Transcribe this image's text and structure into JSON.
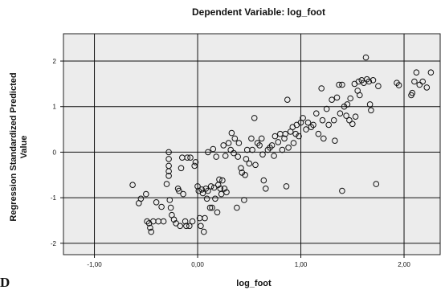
{
  "chart_data": {
    "type": "scatter",
    "title": "Dependent Variable: log_foot",
    "xlabel": "log_foot",
    "ylabel": [
      "Regression Standardized Predicted",
      "Value"
    ],
    "xlim": [
      -1.3,
      2.35
    ],
    "ylim": [
      -2.25,
      2.6
    ],
    "xticks": [
      -1,
      0,
      1,
      2
    ],
    "xtick_labels": [
      "-1,00",
      "0,00",
      "1,00",
      "2,00"
    ],
    "yticks": [
      -2,
      -1,
      0,
      1,
      2
    ],
    "ytick_labels": [
      "-2",
      "-1",
      "0",
      "1",
      "2"
    ],
    "grid": true,
    "plot_background": "#ececec",
    "marker": "open-circle",
    "points": [
      [
        -0.63,
        -0.72
      ],
      [
        -0.57,
        -1.12
      ],
      [
        -0.55,
        -1.02
      ],
      [
        -0.5,
        -0.92
      ],
      [
        -0.49,
        -1.52
      ],
      [
        -0.47,
        -1.56
      ],
      [
        -0.46,
        -1.66
      ],
      [
        -0.45,
        -1.75
      ],
      [
        -0.43,
        -1.52
      ],
      [
        -0.4,
        -1.1
      ],
      [
        -0.38,
        -1.52
      ],
      [
        -0.35,
        -1.2
      ],
      [
        -0.33,
        -1.52
      ],
      [
        -0.3,
        -0.7
      ],
      [
        -0.28,
        -0.52
      ],
      [
        -0.28,
        -0.42
      ],
      [
        -0.28,
        -0.3
      ],
      [
        -0.28,
        -0.15
      ],
      [
        -0.28,
        0.0
      ],
      [
        -0.27,
        -1.05
      ],
      [
        -0.26,
        -1.22
      ],
      [
        -0.25,
        -1.38
      ],
      [
        -0.23,
        -1.48
      ],
      [
        -0.21,
        -1.56
      ],
      [
        -0.19,
        -0.8
      ],
      [
        -0.18,
        -0.85
      ],
      [
        -0.17,
        -1.62
      ],
      [
        -0.16,
        -0.35
      ],
      [
        -0.15,
        -0.12
      ],
      [
        -0.14,
        -0.92
      ],
      [
        -0.12,
        -1.52
      ],
      [
        -0.11,
        -1.62
      ],
      [
        -0.1,
        -0.12
      ],
      [
        -0.08,
        -1.62
      ],
      [
        -0.07,
        -0.12
      ],
      [
        -0.05,
        -1.52
      ],
      [
        -0.03,
        -0.3
      ],
      [
        -0.02,
        -0.22
      ],
      [
        0.0,
        -0.75
      ],
      [
        0.01,
        -0.85
      ],
      [
        0.02,
        -1.45
      ],
      [
        0.03,
        -1.62
      ],
      [
        0.04,
        -0.82
      ],
      [
        0.05,
        -0.9
      ],
      [
        0.06,
        -1.75
      ],
      [
        0.07,
        -1.45
      ],
      [
        0.08,
        -0.8
      ],
      [
        0.09,
        -1.02
      ],
      [
        0.1,
        -0.85
      ],
      [
        0.1,
        0.0
      ],
      [
        0.12,
        -1.22
      ],
      [
        0.13,
        -0.75
      ],
      [
        0.14,
        -1.22
      ],
      [
        0.15,
        0.07
      ],
      [
        0.16,
        -0.78
      ],
      [
        0.17,
        -1.02
      ],
      [
        0.18,
        -0.1
      ],
      [
        0.19,
        -1.32
      ],
      [
        0.2,
        -0.72
      ],
      [
        0.21,
        -0.6
      ],
      [
        0.22,
        -0.8
      ],
      [
        0.23,
        -0.92
      ],
      [
        0.24,
        -0.62
      ],
      [
        0.25,
        0.15
      ],
      [
        0.26,
        -0.8
      ],
      [
        0.27,
        -0.08
      ],
      [
        0.28,
        -0.88
      ],
      [
        0.3,
        0.2
      ],
      [
        0.32,
        0.05
      ],
      [
        0.33,
        0.42
      ],
      [
        0.35,
        -0.02
      ],
      [
        0.36,
        0.3
      ],
      [
        0.38,
        -1.22
      ],
      [
        0.39,
        -0.1
      ],
      [
        0.4,
        0.2
      ],
      [
        0.42,
        -0.35
      ],
      [
        0.43,
        -0.45
      ],
      [
        0.45,
        -1.05
      ],
      [
        0.46,
        -0.5
      ],
      [
        0.47,
        -0.15
      ],
      [
        0.48,
        0.05
      ],
      [
        0.5,
        -0.25
      ],
      [
        0.52,
        0.3
      ],
      [
        0.53,
        0.05
      ],
      [
        0.55,
        0.75
      ],
      [
        0.56,
        -0.28
      ],
      [
        0.58,
        0.2
      ],
      [
        0.6,
        0.15
      ],
      [
        0.62,
        0.3
      ],
      [
        0.63,
        -0.05
      ],
      [
        0.64,
        -0.62
      ],
      [
        0.66,
        -0.8
      ],
      [
        0.68,
        0.05
      ],
      [
        0.7,
        0.1
      ],
      [
        0.72,
        0.15
      ],
      [
        0.74,
        -0.08
      ],
      [
        0.75,
        0.35
      ],
      [
        0.78,
        0.22
      ],
      [
        0.8,
        0.4
      ],
      [
        0.82,
        0.05
      ],
      [
        0.84,
        0.3
      ],
      [
        0.85,
        0.4
      ],
      [
        0.86,
        -0.75
      ],
      [
        0.87,
        1.15
      ],
      [
        0.88,
        0.1
      ],
      [
        0.9,
        0.45
      ],
      [
        0.92,
        0.55
      ],
      [
        0.93,
        0.2
      ],
      [
        0.95,
        0.4
      ],
      [
        0.96,
        0.6
      ],
      [
        0.98,
        0.35
      ],
      [
        1.0,
        0.65
      ],
      [
        1.02,
        0.75
      ],
      [
        1.05,
        0.5
      ],
      [
        1.07,
        0.65
      ],
      [
        1.1,
        0.55
      ],
      [
        1.12,
        0.6
      ],
      [
        1.15,
        0.85
      ],
      [
        1.17,
        0.4
      ],
      [
        1.2,
        1.4
      ],
      [
        1.21,
        0.7
      ],
      [
        1.22,
        0.3
      ],
      [
        1.25,
        0.95
      ],
      [
        1.27,
        0.6
      ],
      [
        1.3,
        1.15
      ],
      [
        1.32,
        0.7
      ],
      [
        1.33,
        0.25
      ],
      [
        1.35,
        1.2
      ],
      [
        1.37,
        1.48
      ],
      [
        1.38,
        0.85
      ],
      [
        1.4,
        1.48
      ],
      [
        1.42,
        1.0
      ],
      [
        1.44,
        0.8
      ],
      [
        1.45,
        1.05
      ],
      [
        1.47,
        0.7
      ],
      [
        1.48,
        1.18
      ],
      [
        1.5,
        0.62
      ],
      [
        1.52,
        1.5
      ],
      [
        1.53,
        0.78
      ],
      [
        1.55,
        1.35
      ],
      [
        1.56,
        1.55
      ],
      [
        1.57,
        1.25
      ],
      [
        1.59,
        1.58
      ],
      [
        1.61,
        1.52
      ],
      [
        1.63,
        2.08
      ],
      [
        1.64,
        1.6
      ],
      [
        1.66,
        1.55
      ],
      [
        1.67,
        1.05
      ],
      [
        1.68,
        0.92
      ],
      [
        1.7,
        1.58
      ],
      [
        1.73,
        -0.7
      ],
      [
        1.4,
        -0.85
      ],
      [
        1.75,
        1.45
      ],
      [
        1.93,
        1.52
      ],
      [
        1.95,
        1.47
      ],
      [
        2.07,
        1.25
      ],
      [
        2.08,
        1.3
      ],
      [
        2.1,
        1.55
      ],
      [
        2.12,
        1.75
      ],
      [
        2.15,
        1.48
      ],
      [
        2.18,
        1.55
      ],
      [
        2.22,
        1.42
      ],
      [
        2.26,
        1.75
      ]
    ]
  },
  "corner_text": "D"
}
